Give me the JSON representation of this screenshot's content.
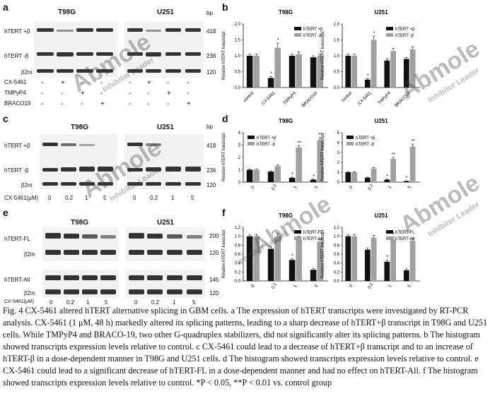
{
  "figure": {
    "panels": {
      "a": {
        "label": "a",
        "cell_titles": [
          "T98G",
          "U251"
        ],
        "unit": "bp",
        "bands": [
          {
            "name": "hTERT +β",
            "bp": "418"
          },
          {
            "name": "hTERT -β",
            "bp": "236"
          },
          {
            "name": "β2m",
            "bp": "120"
          }
        ],
        "treatments": [
          {
            "name": "CX-5461",
            "signs": [
              "-",
              "+",
              "-",
              "-",
              "-",
              "+",
              "-",
              "-"
            ]
          },
          {
            "name": "TMPyP4",
            "signs": [
              "-",
              "-",
              "+",
              "-",
              "-",
              "-",
              "+",
              "-"
            ]
          },
          {
            "name": "BRACO19",
            "signs": [
              "-",
              "-",
              "-",
              "+",
              "-",
              "-",
              "-",
              "+"
            ]
          }
        ]
      },
      "c": {
        "label": "c",
        "cell_titles": [
          "T98G",
          "U251"
        ],
        "unit": "bp",
        "bands": [
          {
            "name": "hTERT +β",
            "bp": "418"
          },
          {
            "name": "hTERT -β",
            "bp": "236"
          },
          {
            "name": "β2m",
            "bp": "120"
          }
        ],
        "dose_label": "CX-5461(μM)",
        "doses": [
          "0",
          "0.2",
          "1",
          "5",
          "0",
          "0.2",
          "1",
          "5"
        ]
      },
      "e": {
        "label": "e",
        "cell_titles": [
          "T98G",
          "U251"
        ],
        "bands": [
          {
            "name": "hTERT-FL",
            "bp": "200"
          },
          {
            "name": "β2m",
            "bp": "120"
          },
          {
            "name": "hTERT-All",
            "bp": "145"
          },
          {
            "name": "β2m",
            "bp": "120"
          }
        ],
        "dose_label": "CX-5461(μM)",
        "doses": [
          "0",
          "0.2",
          "1",
          "5",
          "0",
          "0.2",
          "1",
          "5"
        ]
      }
    },
    "watermark": {
      "brand": "Abmole",
      "sub": "Inhibitor Leader"
    }
  },
  "chart_data": [
    {
      "panel": "b",
      "type": "bar",
      "title": "T98G",
      "ylabel": "Relative hTERT transcript",
      "categories": [
        "control",
        "CX-5461",
        "TMPyP4",
        "BRACO19"
      ],
      "ylim": [
        0,
        2.0
      ],
      "yticks": [
        "0.0",
        "0.5",
        "1.0",
        "1.5",
        "2.0"
      ],
      "series": [
        {
          "name": "hTERT +β",
          "values": [
            1.0,
            0.3,
            1.0,
            0.95
          ],
          "errors": [
            0.05,
            0.05,
            0.05,
            0.05
          ]
        },
        {
          "name": "hTERT -β",
          "values": [
            1.0,
            1.25,
            1.05,
            1.0
          ],
          "errors": [
            0.05,
            0.15,
            0.08,
            0.05
          ]
        }
      ],
      "annotations": [
        "*",
        "*"
      ],
      "legend": "top-right"
    },
    {
      "panel": "b2",
      "type": "bar",
      "title": "U251",
      "ylabel": "Relative hTERT transcript",
      "categories": [
        "control",
        "CX-5461",
        "TMPyP4",
        "BRACO19"
      ],
      "ylim": [
        0,
        2.0
      ],
      "yticks": [
        "0.0",
        "0.5",
        "1.0",
        "1.5",
        "2.0"
      ],
      "series": [
        {
          "name": "hTERT +β",
          "values": [
            1.0,
            0.25,
            0.85,
            0.9
          ],
          "errors": [
            0.05,
            0.04,
            0.05,
            0.05
          ]
        },
        {
          "name": "hTERT -β",
          "values": [
            1.0,
            1.5,
            1.15,
            1.2
          ],
          "errors": [
            0.05,
            0.12,
            0.08,
            0.08
          ]
        }
      ],
      "annotations": [
        "*",
        "*"
      ],
      "legend": "top-right"
    },
    {
      "panel": "d",
      "type": "bar",
      "title": "T98G",
      "ylabel": "Relative hTERT transcript",
      "categories": [
        "0",
        "0.2",
        "1",
        "5"
      ],
      "ylim": [
        0,
        4
      ],
      "yticks": [
        "0",
        "1",
        "2",
        "3",
        "4"
      ],
      "series": [
        {
          "name": "hTERT +β",
          "values": [
            1.0,
            0.85,
            0.35,
            0.2
          ],
          "errors": [
            0.05,
            0.06,
            0.05,
            0.04
          ]
        },
        {
          "name": "hTERT -β",
          "values": [
            1.0,
            1.3,
            2.8,
            3.4
          ],
          "errors": [
            0.05,
            0.1,
            0.15,
            0.2
          ]
        }
      ],
      "annotations": [
        "*",
        "*",
        "**",
        "**"
      ],
      "legend": "top-left"
    },
    {
      "panel": "d2",
      "type": "bar",
      "title": "U251",
      "ylabel": "Relative hTERT transcript",
      "categories": [
        "0",
        "0.2",
        "1",
        "5"
      ],
      "ylim": [
        0,
        5
      ],
      "yticks": [
        "0",
        "1",
        "2",
        "3",
        "4",
        "5"
      ],
      "series": [
        {
          "name": "hTERT +β",
          "values": [
            1.0,
            0.45,
            0.25,
            0.1
          ],
          "errors": [
            0.05,
            0.05,
            0.04,
            0.03
          ]
        },
        {
          "name": "hTERT -β",
          "values": [
            1.0,
            1.35,
            2.35,
            3.6
          ],
          "errors": [
            0.05,
            0.12,
            0.15,
            0.25
          ]
        }
      ],
      "annotations": [
        "*",
        "*",
        "**",
        "**"
      ],
      "legend": "top-left"
    },
    {
      "panel": "f",
      "type": "bar",
      "title": "T98G",
      "ylabel": "Relative hTERT transcript",
      "categories": [
        "0",
        "0.2",
        "1",
        "5"
      ],
      "ylim": [
        0,
        1.2
      ],
      "yticks": [
        "0.0",
        "0.2",
        "0.4",
        "0.6",
        "0.8",
        "1.0",
        "1.2"
      ],
      "series": [
        {
          "name": "hTERT-FL",
          "values": [
            1.0,
            0.72,
            0.47,
            0.25
          ],
          "errors": [
            0.03,
            0.04,
            0.03,
            0.03
          ]
        },
        {
          "name": "hTERT-All",
          "values": [
            1.0,
            1.0,
            0.95,
            0.88
          ],
          "errors": [
            0.04,
            0.06,
            0.05,
            0.05
          ]
        }
      ],
      "annotations": [
        "*",
        "*"
      ],
      "legend": "top-right"
    },
    {
      "panel": "f2",
      "type": "bar",
      "title": "U251",
      "ylabel": "Relative hTERT transcript",
      "categories": [
        "0",
        "0.2",
        "1",
        "5"
      ],
      "ylim": [
        0,
        1.2
      ],
      "yticks": [
        "0.0",
        "0.2",
        "0.4",
        "0.6",
        "0.8",
        "1.0",
        "1.2"
      ],
      "series": [
        {
          "name": "hTERT-FL",
          "values": [
            1.0,
            0.7,
            0.43,
            0.24
          ],
          "errors": [
            0.03,
            0.04,
            0.04,
            0.03
          ]
        },
        {
          "name": "hTERT-All",
          "values": [
            1.0,
            0.97,
            0.93,
            0.9
          ],
          "errors": [
            0.04,
            0.05,
            0.05,
            0.05
          ]
        }
      ],
      "annotations": [
        "*",
        "*"
      ],
      "legend": "top-right"
    }
  ],
  "chart_labels": {
    "b": "b",
    "d": "d",
    "f": "f"
  },
  "caption": "Fig. 4 CX-5461 altered hTERT alternative splicing in GBM cells. a The expression of hTERT transcripts were investigated by RT-PCR analysis. CX-5461 (1 μM, 48 h) markedly altered its splicing patterns, leading to a sharp decrease of hTERT+β transcript in T98G and U251 cells. While TMPyP4 and BRACO-19, two other G-quadruplex stabilizers, did not significantly alter its splicing patterns. b The histogram showed transcripts expression levels relative to control. c CX-5461 could lead to a decrease of hTERT+β transcript and to an increase of hTERT-β in a dose-dependent manner in T98G and U251 cells. d The histogram showed transcripts expression levels relative to control. e CX-5461 could lead to a significant decrease of hTERT-FL in a dose-dependent manner and had no effect on hTERT-All. f The histogram showed transcripts expression levels relative to control. *P < 0.05, **P < 0.01 vs. control group",
  "colors": {
    "black": "#111111",
    "gray": "#a0a0a0"
  }
}
